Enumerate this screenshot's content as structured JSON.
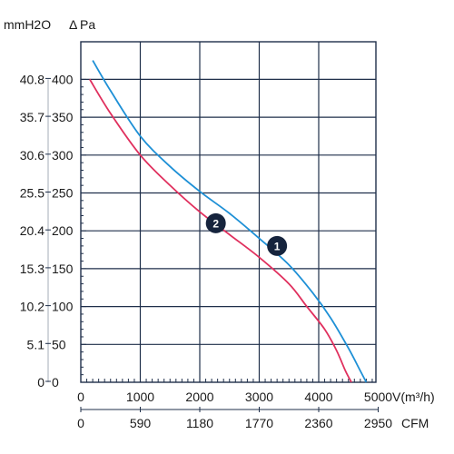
{
  "chart_data": {
    "type": "line",
    "left_axis_labels": {
      "unit_mmh2o": "mmH2O",
      "unit_pa": "Pa",
      "delta_symbol": "Δ"
    },
    "y_pa_ticks": [
      "0",
      "50",
      "100",
      "150",
      "200",
      "250",
      "300",
      "350",
      "400"
    ],
    "y_pa_values": [
      0,
      50,
      100,
      150,
      200,
      250,
      300,
      350,
      400
    ],
    "y_mmh2o_ticks": [
      "0",
      "5.1",
      "10.2",
      "15.3",
      "20.4",
      "25.5",
      "30.6",
      "35.7",
      "40.8"
    ],
    "x_m3h_ticks": [
      "0",
      "1000",
      "2000",
      "3000",
      "4000",
      "5000"
    ],
    "x_m3h_values": [
      0,
      1000,
      2000,
      3000,
      4000,
      5000
    ],
    "x_m3h_unit": "V(m³/h)",
    "x_cfm_ticks": [
      "0",
      "590",
      "1180",
      "1770",
      "2360",
      "2950"
    ],
    "x_cfm_unit": "CFM",
    "xlim": [
      0,
      5000
    ],
    "ylim": [
      0,
      440
    ],
    "grid": true,
    "series": [
      {
        "label": "1",
        "color": "#1e90d6",
        "x": [
          200,
          500,
          1000,
          1500,
          2000,
          2500,
          3000,
          3500,
          3900,
          4200,
          4500,
          4700,
          4800
        ],
        "y": [
          425,
          385,
          325,
          285,
          252,
          223,
          190,
          155,
          118,
          85,
          45,
          15,
          0
        ]
      },
      {
        "label": "2",
        "color": "#e0305e",
        "x": [
          150,
          500,
          1000,
          1500,
          2000,
          2500,
          3000,
          3500,
          3800,
          4100,
          4300,
          4450,
          4550
        ],
        "y": [
          400,
          355,
          300,
          260,
          225,
          195,
          165,
          130,
          100,
          70,
          42,
          15,
          0
        ]
      }
    ],
    "curve_labels": [
      {
        "text": "1",
        "x": 3300,
        "y": 180
      },
      {
        "text": "2",
        "x": 2270,
        "y": 210
      }
    ]
  }
}
